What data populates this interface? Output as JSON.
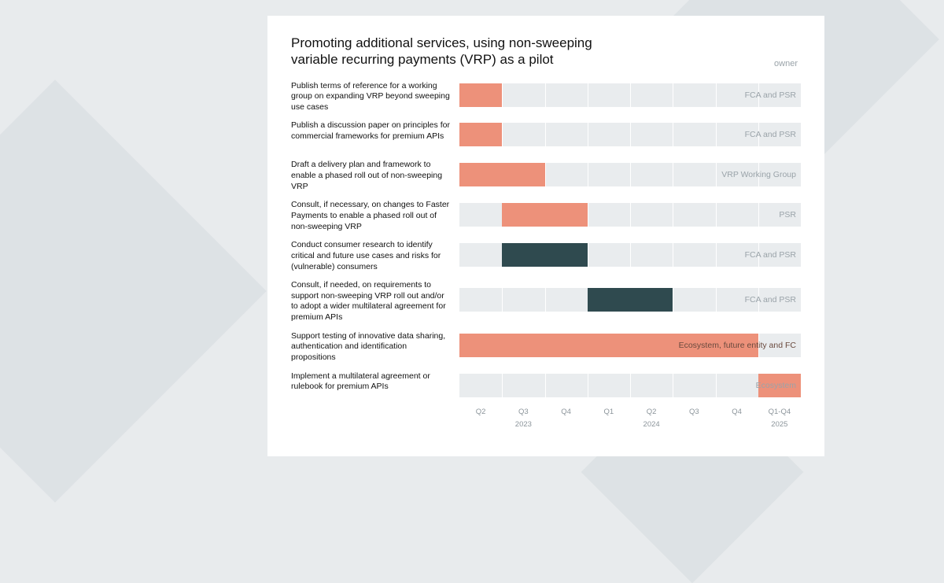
{
  "background": {
    "page_color": "#e8ebed",
    "shape_color": "#dde2e5"
  },
  "card_bg": "#ffffff",
  "title": "Promoting additional services, using non-sweeping variable recurring payments (VRP) as a pilot",
  "owner_header": "owner",
  "chart": {
    "type": "gantt",
    "track_bg": "#e9ecee",
    "grid_color": "#ffffff",
    "colors": {
      "orange": "#ed917a",
      "dark": "#2f4a4f"
    },
    "timeline": {
      "unit_count": 8,
      "quarters": [
        "Q2",
        "Q3",
        "Q4",
        "Q1",
        "Q2",
        "Q3",
        "Q4",
        "Q1-Q4"
      ],
      "year_labels": [
        {
          "label": "2023",
          "center_unit": 1.5
        },
        {
          "label": "2024",
          "center_unit": 4.5
        },
        {
          "label": "2025",
          "center_unit": 7.5
        }
      ]
    },
    "rows": [
      {
        "label": "Publish terms of reference for a working group on expanding VRP beyond sweeping use cases",
        "owner": "FCA and PSR",
        "owner_style": "light",
        "bar": {
          "start": 0,
          "span": 1,
          "color": "orange"
        }
      },
      {
        "label": "Publish a discussion paper on principles for commercial frameworks for premium APIs",
        "owner": "FCA and PSR",
        "owner_style": "light",
        "bar": {
          "start": 0,
          "span": 1,
          "color": "orange"
        }
      },
      {
        "label": "Draft a delivery plan and framework to enable a phased roll out of non-sweeping VRP",
        "owner": "VRP Working Group",
        "owner_style": "light",
        "bar": {
          "start": 0,
          "span": 2,
          "color": "orange"
        }
      },
      {
        "label": "Consult, if necessary, on changes to Faster Payments to enable a phased roll out of non-sweeping VRP",
        "owner": "PSR",
        "owner_style": "light",
        "bar": {
          "start": 1,
          "span": 2,
          "color": "orange"
        }
      },
      {
        "label": "Conduct consumer research to identify critical and future use cases and risks for (vulnerable) consumers",
        "owner": "FCA and PSR",
        "owner_style": "light",
        "bar": {
          "start": 1,
          "span": 2,
          "color": "dark"
        }
      },
      {
        "label": "Consult, if needed, on requirements to support non-sweeping VRP roll out and/or to adopt a wider multilateral agreement for premium APIs",
        "owner": "FCA and PSR",
        "owner_style": "light",
        "bar": {
          "start": 3,
          "span": 2,
          "color": "dark"
        }
      },
      {
        "label": "Support testing of innovative data sharing, authentication and identification propositions",
        "owner": "Ecosystem, future entity and FC",
        "owner_style": "dark",
        "bar": {
          "start": 0,
          "span": 7,
          "color": "orange"
        }
      },
      {
        "label": "Implement a multilateral agreement or rulebook for premium APIs",
        "owner": "Ecosystem",
        "owner_style": "light",
        "bar": {
          "start": 7,
          "span": 1,
          "color": "orange"
        }
      }
    ]
  },
  "typography": {
    "title_fontsize": 17,
    "label_fontsize": 10.5,
    "axis_fontsize": 9.5,
    "owner_color_light": "#9aa3a9",
    "owner_color_dark": "#6a4a3e",
    "text_color": "#111111"
  }
}
